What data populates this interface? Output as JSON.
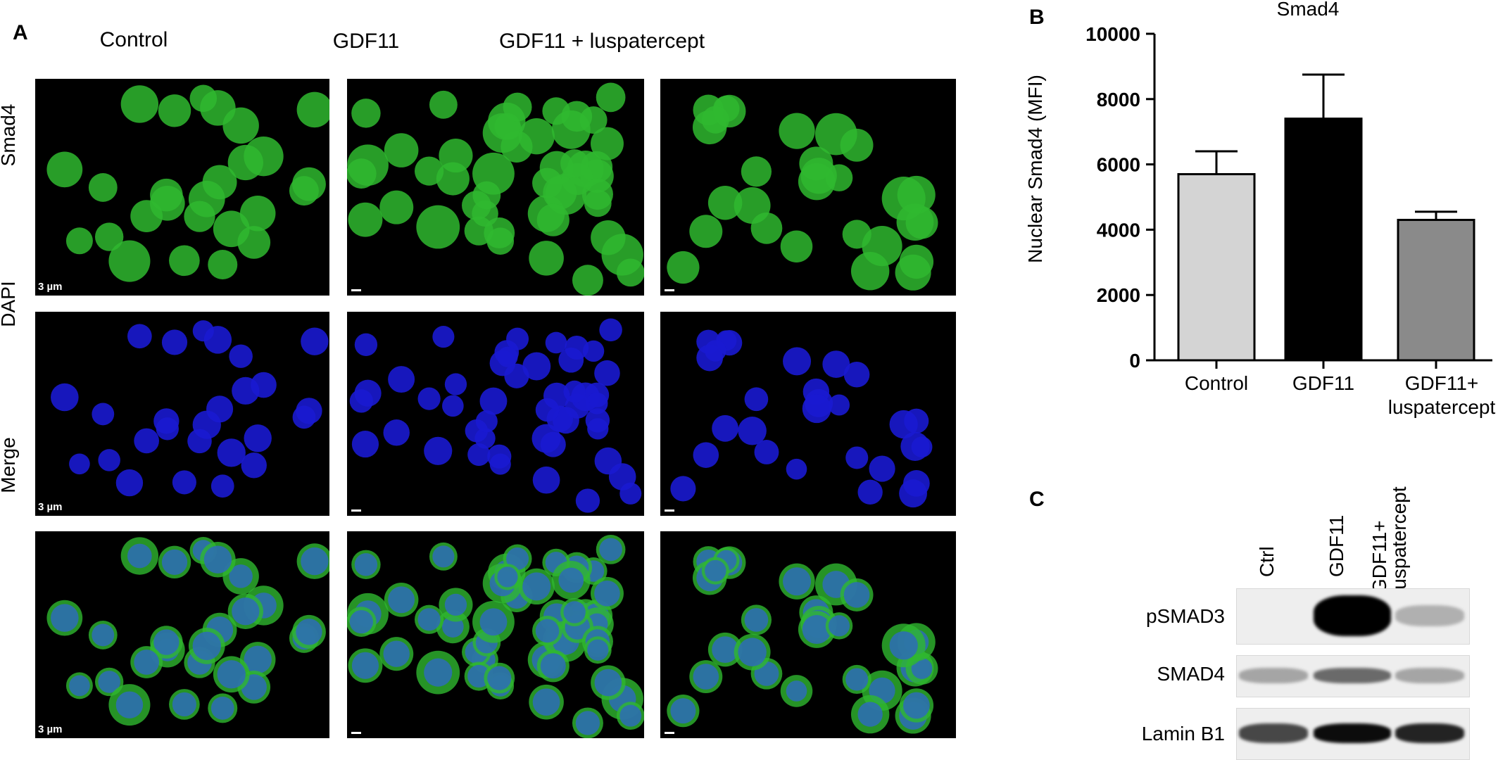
{
  "panels": {
    "a": "A",
    "b": "B",
    "c": "C"
  },
  "microscopy": {
    "columns": [
      "Control",
      "GDF11",
      "GDF11 + luspatercept"
    ],
    "rows": [
      "Smad4",
      "DAPI",
      "Merge"
    ],
    "scale_bar": "3 µm"
  },
  "chart_data": {
    "type": "bar",
    "title": "Smad4",
    "ylabel": "Nuclear Smad4 (MFI)",
    "xlabel": "",
    "categories": [
      "Control",
      "GDF11",
      "GDF11+\nluspatercept"
    ],
    "category_lines": [
      [
        "Control"
      ],
      [
        "GDF11"
      ],
      [
        "GDF11+",
        "luspatercept"
      ]
    ],
    "values": [
      5700,
      7400,
      4300
    ],
    "errors": [
      700,
      1350,
      250
    ],
    "bar_colors": [
      "#d4d4d4",
      "#000000",
      "#8a8a8a"
    ],
    "ylim": [
      0,
      10000
    ],
    "yticks": [
      "0",
      "2000",
      "4000",
      "6000",
      "8000",
      "10000"
    ],
    "grid": false,
    "legend": "none"
  },
  "western_blot": {
    "lanes": [
      "Ctrl",
      "GDF11",
      "GDF11+",
      "luspatercept"
    ],
    "rows": [
      "pSMAD3",
      "SMAD4",
      "Lamin B1"
    ],
    "band_intensity": {
      "pSMAD3": [
        0.0,
        1.0,
        0.25
      ],
      "SMAD4": [
        0.3,
        0.55,
        0.3
      ],
      "Lamin B1": [
        0.7,
        0.95,
        0.85
      ]
    }
  },
  "colors": {
    "smad4": "#2fb82f",
    "dapi": "#1a1ad0",
    "merge_nucleus": "#2e6fb0"
  }
}
